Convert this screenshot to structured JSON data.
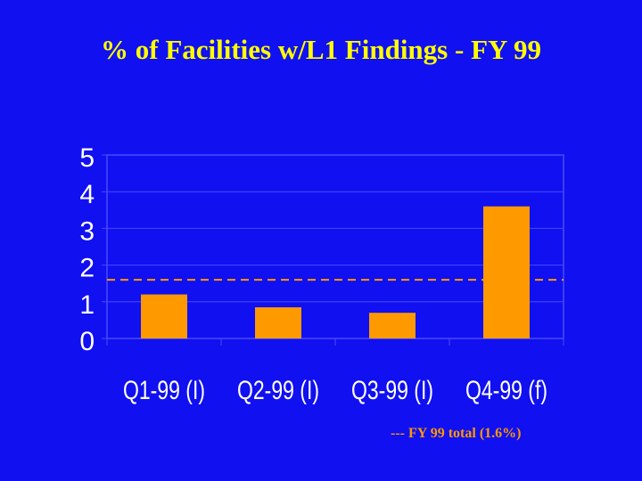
{
  "chart_data": {
    "type": "bar",
    "title": "% of Facilities w/L1 Findings - FY 99",
    "categories": [
      "Q1-99 (I)",
      "Q2-99 (I)",
      "Q3-99 (I)",
      "Q4-99 (f)"
    ],
    "values": [
      1.2,
      0.85,
      0.7,
      3.6
    ],
    "yticks": [
      "0",
      "1",
      "2",
      "3",
      "4",
      "5"
    ],
    "ylim": [
      0,
      5
    ],
    "reference_line": {
      "value": 1.6,
      "label": "--- FY 99 total (1.6%)"
    },
    "xlabel": "",
    "ylabel": "",
    "grid": true,
    "colors": {
      "bar": "#ff9900",
      "background": "#1010f0",
      "title": "#ffff00",
      "reference": "#ff9900",
      "gridline": "#4a4aff"
    }
  }
}
